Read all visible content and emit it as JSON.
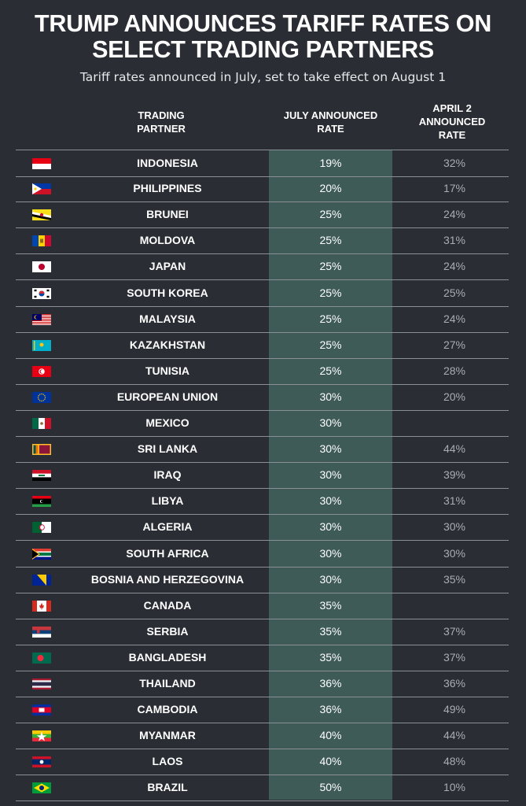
{
  "title_line1": "TRUMP ANNOUNCES TARIFF RATES ON",
  "title_line2": "SELECT TRADING PARTNERS",
  "subtitle": "Tariff rates announced in July, set to take effect on August 1",
  "colors": {
    "background": "#2a2e34",
    "highlight_column": "#3e5b58",
    "april_text": "#a9adb3"
  },
  "chart_data": {
    "type": "table",
    "columns": [
      {
        "line1": "TRADING",
        "line2": "PARTNER",
        "line3": ""
      },
      {
        "line1": "JULY ANNOUNCED",
        "line2": "RATE",
        "line3": ""
      },
      {
        "line1": "APRIL 2",
        "line2": "ANNOUNCED",
        "line3": "RATE"
      }
    ],
    "rows": [
      {
        "partner": "INDONESIA",
        "july": "19%",
        "april": "32%",
        "flag": "indonesia-flag"
      },
      {
        "partner": "PHILIPPINES",
        "july": "20%",
        "april": "17%",
        "flag": "philippines-flag"
      },
      {
        "partner": "BRUNEI",
        "july": "25%",
        "april": "24%",
        "flag": "brunei-flag"
      },
      {
        "partner": "MOLDOVA",
        "july": "25%",
        "april": "31%",
        "flag": "moldova-flag"
      },
      {
        "partner": "JAPAN",
        "july": "25%",
        "april": "24%",
        "flag": "japan-flag"
      },
      {
        "partner": "SOUTH KOREA",
        "july": "25%",
        "april": "25%",
        "flag": "south-korea-flag"
      },
      {
        "partner": "MALAYSIA",
        "july": "25%",
        "april": "24%",
        "flag": "malaysia-flag"
      },
      {
        "partner": "KAZAKHSTAN",
        "july": "25%",
        "april": "27%",
        "flag": "kazakhstan-flag"
      },
      {
        "partner": "TUNISIA",
        "july": "25%",
        "april": "28%",
        "flag": "tunisia-flag"
      },
      {
        "partner": "EUROPEAN UNION",
        "july": "30%",
        "april": "20%",
        "flag": "european-union-flag"
      },
      {
        "partner": "MEXICO",
        "july": "30%",
        "april": "",
        "flag": "mexico-flag"
      },
      {
        "partner": "SRI LANKA",
        "july": "30%",
        "april": "44%",
        "flag": "sri-lanka-flag"
      },
      {
        "partner": "IRAQ",
        "july": "30%",
        "april": "39%",
        "flag": "iraq-flag"
      },
      {
        "partner": "LIBYA",
        "july": "30%",
        "april": "31%",
        "flag": "libya-flag"
      },
      {
        "partner": "ALGERIA",
        "july": "30%",
        "april": "30%",
        "flag": "algeria-flag"
      },
      {
        "partner": "SOUTH AFRICA",
        "july": "30%",
        "april": "30%",
        "flag": "south-africa-flag"
      },
      {
        "partner": "BOSNIA AND HERZEGOVINA",
        "july": "30%",
        "april": "35%",
        "flag": "bosnia-flag"
      },
      {
        "partner": "CANADA",
        "july": "35%",
        "april": "",
        "flag": "canada-flag"
      },
      {
        "partner": "SERBIA",
        "july": "35%",
        "april": "37%",
        "flag": "serbia-flag"
      },
      {
        "partner": "BANGLADESH",
        "july": "35%",
        "april": "37%",
        "flag": "bangladesh-flag"
      },
      {
        "partner": "THAILAND",
        "july": "36%",
        "april": "36%",
        "flag": "thailand-flag"
      },
      {
        "partner": "CAMBODIA",
        "july": "36%",
        "april": "49%",
        "flag": "cambodia-flag"
      },
      {
        "partner": "MYANMAR",
        "july": "40%",
        "april": "44%",
        "flag": "myanmar-flag"
      },
      {
        "partner": "LAOS",
        "july": "40%",
        "april": "48%",
        "flag": "laos-flag"
      },
      {
        "partner": "BRAZIL",
        "july": "50%",
        "april": "10%",
        "flag": "brazil-flag"
      }
    ]
  }
}
